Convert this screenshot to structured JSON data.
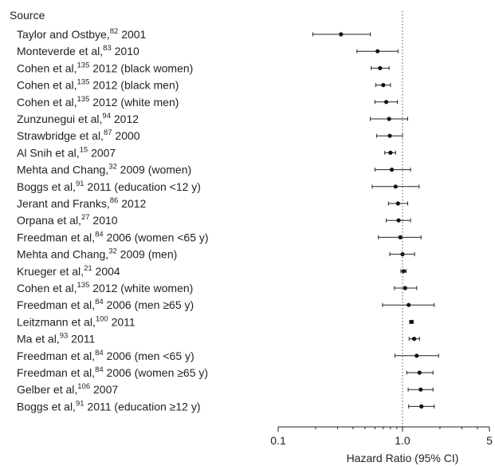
{
  "chart_data": {
    "type": "forest",
    "column_header": "Source",
    "xlabel": "Hazard Ratio (95% CI)",
    "x_scale": "log",
    "xlim": [
      0.1,
      5
    ],
    "reference_line": 1.0,
    "x_ticks": [
      {
        "value": 0.1,
        "label": "0.1"
      },
      {
        "value": 1.0,
        "label": "1.0"
      },
      {
        "value": 5,
        "label": "5"
      }
    ],
    "grid": false,
    "rows": [
      {
        "author": "Taylor and Ostbye,",
        "ref": "82",
        "detail": " 2001",
        "hr": 0.32,
        "lo": 0.19,
        "hi": 0.55
      },
      {
        "author": "Monteverde et al,",
        "ref": "83",
        "detail": " 2010",
        "hr": 0.63,
        "lo": 0.43,
        "hi": 0.92
      },
      {
        "author": "Cohen et al,",
        "ref": "135",
        "detail": " 2012 (black women)",
        "hr": 0.66,
        "lo": 0.56,
        "hi": 0.78
      },
      {
        "author": "Cohen et al,",
        "ref": "135",
        "detail": " 2012 (black men)",
        "hr": 0.7,
        "lo": 0.61,
        "hi": 0.8
      },
      {
        "author": "Cohen et al,",
        "ref": "135",
        "detail": " 2012 (white men)",
        "hr": 0.74,
        "lo": 0.6,
        "hi": 0.91
      },
      {
        "author": "Zunzunegui et al,",
        "ref": "94",
        "detail": " 2012",
        "hr": 0.78,
        "lo": 0.55,
        "hi": 1.1
      },
      {
        "author": "Strawbridge et al,",
        "ref": "87",
        "detail": " 2000",
        "hr": 0.79,
        "lo": 0.62,
        "hi": 1.0
      },
      {
        "author": "Al Snih et al,",
        "ref": "15",
        "detail": " 2007",
        "hr": 0.8,
        "lo": 0.72,
        "hi": 0.88
      },
      {
        "author": "Mehta and Chang,",
        "ref": "32",
        "detail": " 2009 (women)",
        "hr": 0.82,
        "lo": 0.6,
        "hi": 1.16
      },
      {
        "author": "Boggs et al,",
        "ref": "91",
        "detail": " 2011 (education <12 y)",
        "hr": 0.88,
        "lo": 0.57,
        "hi": 1.36
      },
      {
        "author": "Jerant and Franks,",
        "ref": "86",
        "detail": " 2012",
        "hr": 0.92,
        "lo": 0.77,
        "hi": 1.1
      },
      {
        "author": "Orpana et al,",
        "ref": "27",
        "detail": " 2010",
        "hr": 0.93,
        "lo": 0.74,
        "hi": 1.16
      },
      {
        "author": "Freedman et al,",
        "ref": "84",
        "detail": " 2006 (women <65 y)",
        "hr": 0.96,
        "lo": 0.64,
        "hi": 1.41
      },
      {
        "author": "Mehta and Chang,",
        "ref": "32",
        "detail": " 2009 (men)",
        "hr": 1.0,
        "lo": 0.79,
        "hi": 1.25
      },
      {
        "author": "Krueger et al,",
        "ref": "21",
        "detail": " 2004",
        "hr": 1.02,
        "lo": 0.97,
        "hi": 1.07
      },
      {
        "author": "Cohen et al,",
        "ref": "135",
        "detail": " 2012 (white women)",
        "hr": 1.05,
        "lo": 0.86,
        "hi": 1.3
      },
      {
        "author": "Freedman et al,",
        "ref": "84",
        "detail": " 2006 (men ≥65 y)",
        "hr": 1.12,
        "lo": 0.69,
        "hi": 1.8
      },
      {
        "author": "Leitzmann et al,",
        "ref": "100",
        "detail": " 2011",
        "hr": 1.18,
        "lo": 1.14,
        "hi": 1.22
      },
      {
        "author": "Ma et al,",
        "ref": "93",
        "detail": " 2011",
        "hr": 1.24,
        "lo": 1.13,
        "hi": 1.37
      },
      {
        "author": "Freedman et al,",
        "ref": "84",
        "detail": " 2006 (men <65 y)",
        "hr": 1.3,
        "lo": 0.87,
        "hi": 1.95
      },
      {
        "author": "Freedman et al,",
        "ref": "84",
        "detail": " 2006 (women ≥65 y)",
        "hr": 1.37,
        "lo": 1.08,
        "hi": 1.76
      },
      {
        "author": "Gelber et al,",
        "ref": "106",
        "detail": " 2007",
        "hr": 1.4,
        "lo": 1.11,
        "hi": 1.76
      },
      {
        "author": "Boggs et al,",
        "ref": "91",
        "detail": " 2011 (education ≥12 y)",
        "hr": 1.42,
        "lo": 1.12,
        "hi": 1.8
      }
    ]
  }
}
